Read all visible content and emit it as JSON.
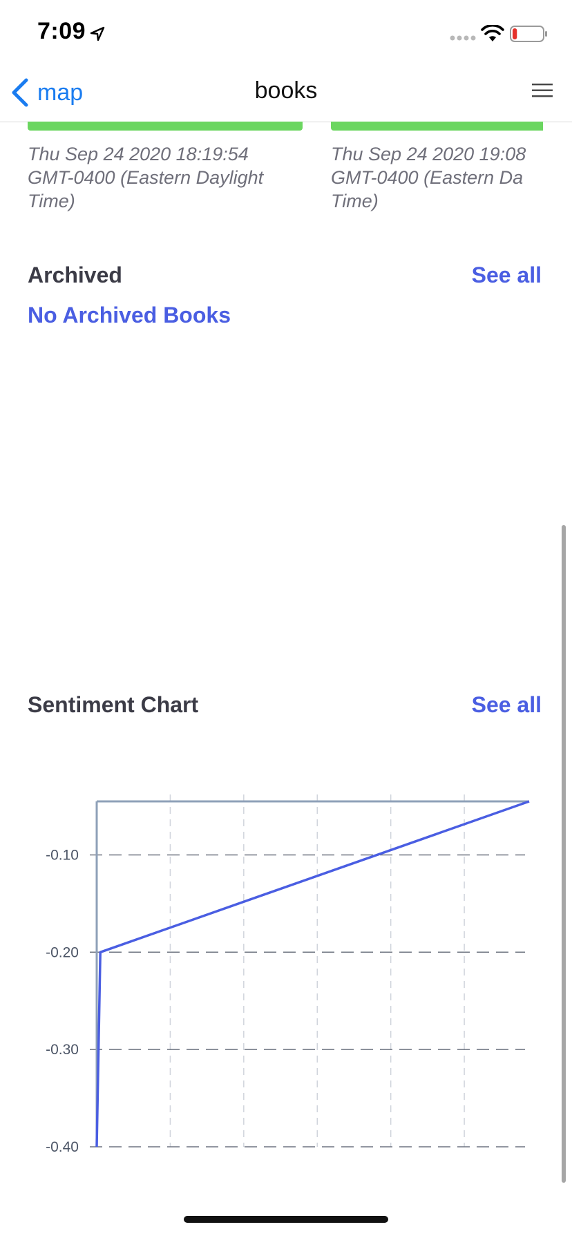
{
  "status_bar": {
    "time": "7:09",
    "battery_level": 0.15
  },
  "nav": {
    "back_label": "map",
    "title": "books"
  },
  "cards": [
    {
      "date": "Thu Sep 24 2020 18:19:54\nGMT-0400 (Eastern Daylight\nTime)"
    },
    {
      "date": "Thu Sep 24 2020 19:08\nGMT-0400 (Eastern Da\nTime)"
    }
  ],
  "archived": {
    "title": "Archived",
    "see_all": "See all",
    "empty_message": "No Archived Books"
  },
  "sentiment": {
    "title": "Sentiment Chart",
    "see_all": "See all"
  },
  "colors": {
    "accent": "#4a5ee2",
    "ios_blue": "#1a7cf0",
    "card_bar": "#6bd660",
    "line": "#4a5ee2",
    "axis": "#8ea0b8"
  },
  "chart_data": {
    "type": "line",
    "title": "",
    "xlabel": "",
    "ylabel": "",
    "y_ticks": [
      "-0.10",
      "-0.20",
      "-0.30",
      "-0.40"
    ],
    "y_tick_values": [
      -0.1,
      -0.2,
      -0.3,
      -0.4
    ],
    "ylim": [
      -0.4,
      -0.045
    ],
    "xlim": [
      0,
      6
    ],
    "grid": true,
    "series": [
      {
        "points": [
          [
            0,
            -0.4
          ],
          [
            0.05,
            -0.2
          ],
          [
            6,
            -0.045
          ]
        ]
      }
    ]
  }
}
